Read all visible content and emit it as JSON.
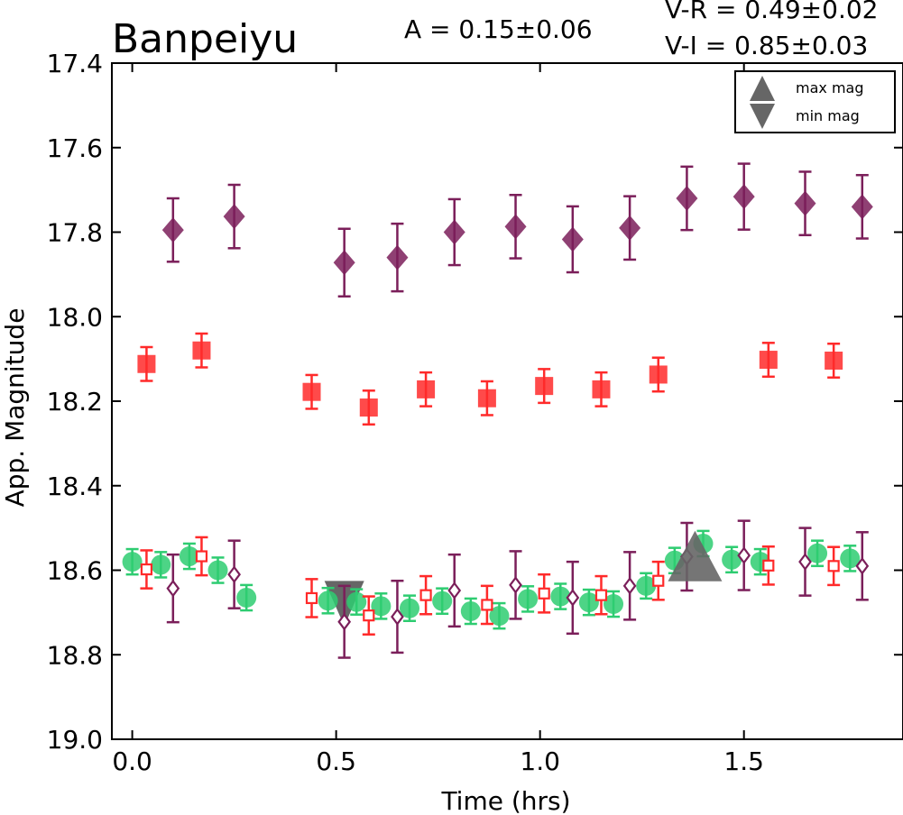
{
  "chart_data": {
    "type": "scatter",
    "title": "Banpeiyu",
    "amplitude_text": "A  = 0.15±0.06",
    "colors_text": [
      "V-R = 0.49±0.02",
      "V-I  = 0.85±0.03"
    ],
    "xlabel": "Time (hrs)",
    "ylabel": "App. Magnitude",
    "xlim": [
      -0.05,
      1.89
    ],
    "ylim": [
      19.0,
      17.4
    ],
    "y_inverted": true,
    "x_ticks": [
      "0.0",
      "0.5",
      "1.0",
      "1.5"
    ],
    "y_ticks": [
      "17.4",
      "17.6",
      "17.8",
      "18.0",
      "18.2",
      "18.4",
      "18.6",
      "18.8",
      "19.0"
    ],
    "grid": false,
    "legend_position": "top-right",
    "legend": [
      {
        "label": "max mag",
        "marker": "triangle-up",
        "color": "#666666"
      },
      {
        "label": "min mag",
        "marker": "triangle-down",
        "color": "#666666"
      }
    ],
    "series": [
      {
        "marker": "diamond",
        "filled": true,
        "color": "#7b1f5a",
        "points": [
          [
            0.1,
            17.795,
            0.075
          ],
          [
            0.25,
            17.763,
            0.075
          ],
          [
            0.52,
            17.872,
            0.08
          ],
          [
            0.65,
            17.86,
            0.08
          ],
          [
            0.79,
            17.8,
            0.078
          ],
          [
            0.94,
            17.787,
            0.075
          ],
          [
            1.08,
            17.817,
            0.078
          ],
          [
            1.22,
            17.79,
            0.075
          ],
          [
            1.36,
            17.72,
            0.075
          ],
          [
            1.5,
            17.716,
            0.078
          ],
          [
            1.65,
            17.732,
            0.075
          ],
          [
            1.79,
            17.74,
            0.075
          ]
        ]
      },
      {
        "marker": "square",
        "filled": true,
        "color": "#ff2a2a",
        "points": [
          [
            0.035,
            18.112,
            0.04
          ],
          [
            0.17,
            18.08,
            0.04
          ],
          [
            0.44,
            18.178,
            0.04
          ],
          [
            0.58,
            18.215,
            0.04
          ],
          [
            0.72,
            18.172,
            0.04
          ],
          [
            0.87,
            18.193,
            0.04
          ],
          [
            1.01,
            18.164,
            0.04
          ],
          [
            1.15,
            18.172,
            0.04
          ],
          [
            1.29,
            18.137,
            0.04
          ],
          [
            1.56,
            18.102,
            0.04
          ],
          [
            1.72,
            18.104,
            0.04
          ]
        ]
      },
      {
        "marker": "circle",
        "filled": true,
        "color": "#2ecc71",
        "points": [
          [
            0.0,
            18.58,
            0.03
          ],
          [
            0.07,
            18.587,
            0.03
          ],
          [
            0.14,
            18.567,
            0.03
          ],
          [
            0.21,
            18.6,
            0.03
          ],
          [
            0.28,
            18.665,
            0.03
          ],
          [
            0.48,
            18.672,
            0.03
          ],
          [
            0.55,
            18.675,
            0.03
          ],
          [
            0.61,
            18.685,
            0.03
          ],
          [
            0.68,
            18.69,
            0.03
          ],
          [
            0.76,
            18.673,
            0.03
          ],
          [
            0.83,
            18.697,
            0.03
          ],
          [
            0.9,
            18.708,
            0.03
          ],
          [
            0.97,
            18.668,
            0.03
          ],
          [
            1.05,
            18.662,
            0.03
          ],
          [
            1.12,
            18.676,
            0.03
          ],
          [
            1.18,
            18.68,
            0.03
          ],
          [
            1.26,
            18.637,
            0.03
          ],
          [
            1.33,
            18.577,
            0.03
          ],
          [
            1.4,
            18.537,
            0.03
          ],
          [
            1.47,
            18.575,
            0.03
          ],
          [
            1.54,
            18.58,
            0.03
          ],
          [
            1.68,
            18.56,
            0.03
          ],
          [
            1.76,
            18.572,
            0.03
          ]
        ]
      },
      {
        "marker": "square",
        "filled": false,
        "color": "#ff2a2a",
        "points": [
          [
            0.035,
            18.598,
            0.045
          ],
          [
            0.17,
            18.567,
            0.045
          ],
          [
            0.44,
            18.666,
            0.045
          ],
          [
            0.58,
            18.707,
            0.045
          ],
          [
            0.72,
            18.659,
            0.045
          ],
          [
            0.87,
            18.682,
            0.045
          ],
          [
            1.01,
            18.655,
            0.045
          ],
          [
            1.15,
            18.659,
            0.045
          ],
          [
            1.29,
            18.625,
            0.045
          ],
          [
            1.56,
            18.589,
            0.045
          ],
          [
            1.72,
            18.59,
            0.045
          ]
        ]
      },
      {
        "marker": "diamond",
        "filled": false,
        "color": "#7b1f5a",
        "points": [
          [
            0.1,
            18.643,
            0.08
          ],
          [
            0.25,
            18.61,
            0.08
          ],
          [
            0.52,
            18.722,
            0.085
          ],
          [
            0.65,
            18.71,
            0.085
          ],
          [
            0.79,
            18.648,
            0.085
          ],
          [
            0.94,
            18.635,
            0.08
          ],
          [
            1.08,
            18.665,
            0.085
          ],
          [
            1.22,
            18.637,
            0.08
          ],
          [
            1.36,
            18.568,
            0.08
          ],
          [
            1.5,
            18.565,
            0.082
          ],
          [
            1.65,
            18.58,
            0.08
          ],
          [
            1.79,
            18.59,
            0.08
          ]
        ]
      }
    ],
    "max_mag_marker": {
      "x": 1.38,
      "y": 18.575,
      "color": "#666666"
    },
    "min_mag_marker": {
      "x": 0.52,
      "y": 18.685,
      "color": "#666666"
    }
  }
}
